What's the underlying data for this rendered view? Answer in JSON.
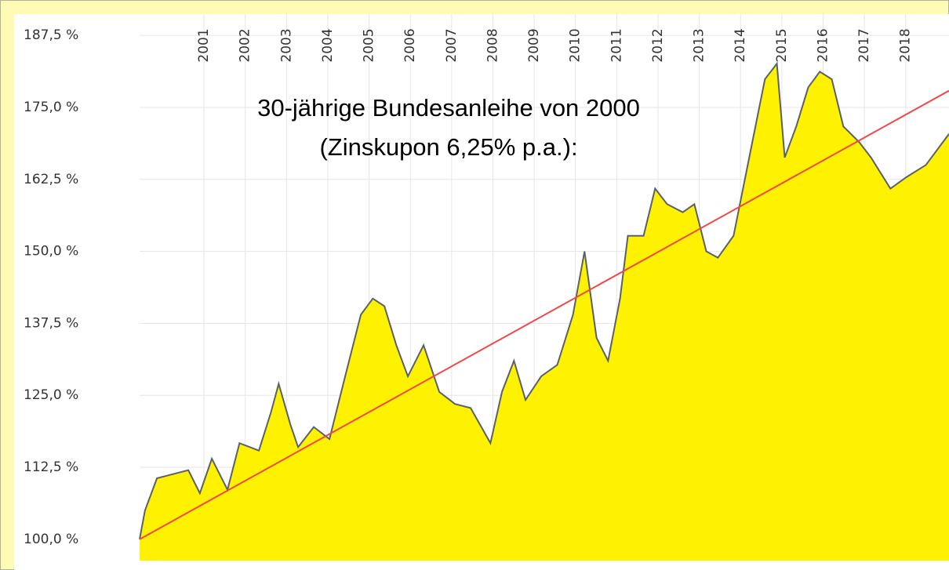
{
  "chart_data": {
    "type": "area",
    "annotation": [
      "30-jährige Bundesanleihe von 2000",
      "(Zinskupon 6,25% p.a.):"
    ],
    "series": [
      {
        "color": "#fff200",
        "line_color": "#59616a",
        "x": [
          1999.44,
          1999.57,
          1999.86,
          2000.24,
          2000.62,
          2000.9,
          2001.19,
          2001.57,
          2001.86,
          2002.33,
          2002.62,
          2002.81,
          2003.09,
          2003.28,
          2003.66,
          2004.04,
          2004.42,
          2004.8,
          2005.09,
          2005.37,
          2005.66,
          2005.94,
          2006.32,
          2006.7,
          2007.08,
          2007.46,
          2007.94,
          2008.22,
          2008.51,
          2008.79,
          2009.17,
          2009.56,
          2009.94,
          2010.22,
          2010.51,
          2010.79,
          2011.08,
          2011.27,
          2011.65,
          2011.93,
          2012.22,
          2012.6,
          2012.88,
          2013.17,
          2013.45,
          2013.83,
          2014.21,
          2014.59,
          2014.88,
          2015.07,
          2015.35,
          2015.64,
          2015.92,
          2016.21,
          2016.49,
          2016.87,
          2017.16,
          2017.63,
          2018.02,
          2018.49,
          2019.05
        ],
        "values": [
          100,
          105,
          110.6,
          111.3,
          112,
          108,
          114,
          108.6,
          116.7,
          115.4,
          122,
          127,
          120,
          116,
          119.5,
          117.4,
          128.3,
          139,
          141.8,
          140.5,
          133.7,
          128.3,
          133.7,
          125.6,
          123.5,
          122.8,
          116.7,
          125.6,
          131,
          124.2,
          128.3,
          130.3,
          139,
          150,
          135,
          131,
          141.8,
          152.7,
          152.7,
          160.9,
          158.2,
          156.8,
          158.2,
          150,
          148.9,
          152.7,
          166.3,
          179.9,
          182.6,
          166.3,
          171.7,
          178.5,
          181.2,
          179.9,
          171.7,
          169,
          166.3,
          160.9,
          162.9,
          165,
          170.4
        ]
      },
      {
        "type": "line",
        "color": "#f04848",
        "x": [
          1999.44,
          2019.05
        ],
        "values": [
          100,
          177.9
        ]
      }
    ],
    "xlim": [
      1999.44,
      2019.05
    ],
    "xticks": [
      2001,
      2002,
      2003,
      2004,
      2005,
      2006,
      2007,
      2008,
      2009,
      2010,
      2011,
      2012,
      2013,
      2014,
      2015,
      2016,
      2017,
      2018
    ],
    "ylim": [
      96.3,
      191.2
    ],
    "yticks": [
      {
        "value": 100,
        "label": "100,0 %"
      },
      {
        "value": 112.5,
        "label": "112,5 %"
      },
      {
        "value": 125,
        "label": "125,0 %"
      },
      {
        "value": 137.5,
        "label": "137,5 %"
      },
      {
        "value": 150,
        "label": "150,0 %"
      },
      {
        "value": 162.5,
        "label": "162,5 %"
      },
      {
        "value": 175,
        "label": "175,0 %"
      },
      {
        "value": 187.5,
        "label": "187,5 %"
      }
    ],
    "grid": true
  }
}
